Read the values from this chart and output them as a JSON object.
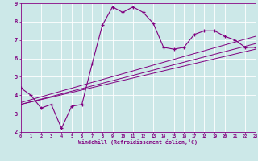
{
  "xlabel": "Windchill (Refroidissement éolien,°C)",
  "ylabel": "",
  "bg_color": "#cce8e8",
  "line_color": "#800080",
  "grid_color": "#ffffff",
  "x_min": 0,
  "x_max": 23,
  "y_min": 2,
  "y_max": 9,
  "main_line_x": [
    0,
    1,
    2,
    3,
    4,
    5,
    6,
    7,
    8,
    9,
    10,
    11,
    12,
    13,
    14,
    15,
    16,
    17,
    18,
    19,
    20,
    21,
    22,
    23
  ],
  "main_line_y": [
    4.4,
    4.0,
    3.3,
    3.5,
    2.2,
    3.4,
    3.5,
    5.7,
    7.8,
    8.8,
    8.5,
    8.8,
    8.5,
    7.9,
    6.6,
    6.5,
    6.6,
    7.3,
    7.5,
    7.5,
    7.2,
    7.0,
    6.6,
    6.6
  ],
  "trend_line1_x": [
    0,
    23
  ],
  "trend_line1_y": [
    3.5,
    6.5
  ],
  "trend_line2_x": [
    0,
    23
  ],
  "trend_line2_y": [
    3.5,
    6.8
  ],
  "trend_line3_x": [
    0,
    23
  ],
  "trend_line3_y": [
    3.6,
    7.2
  ]
}
